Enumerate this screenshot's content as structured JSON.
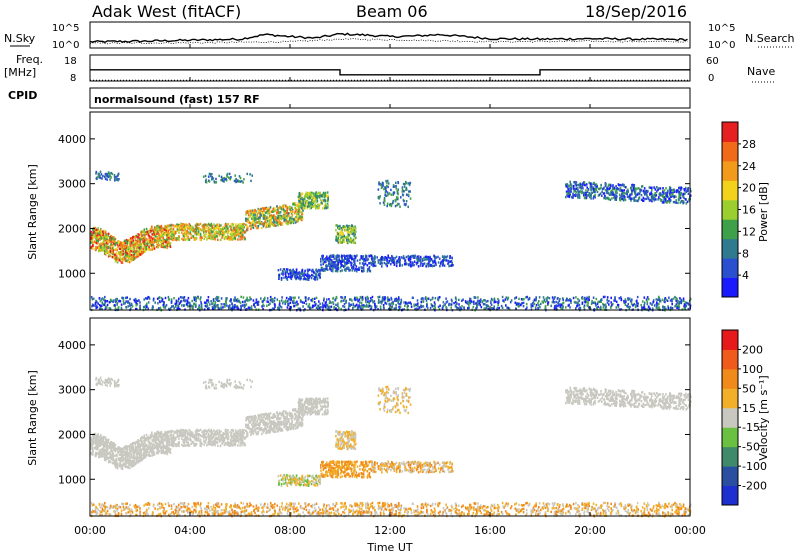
{
  "header": {
    "station": "Adak West (fitACF)",
    "beam": "Beam 06",
    "date": "18/Sep/2016"
  },
  "side_labels": {
    "nsky": "N.Sky",
    "freq": "Freq.",
    "freq_unit": "[MHz]",
    "cpid": "CPID",
    "nsearch": "N.Search",
    "nave": "Nave"
  },
  "cpid_text": "normalsound (fast) 157 RF",
  "x_axis": {
    "label": "Time UT",
    "ticks": [
      "00:00",
      "04:00",
      "08:00",
      "12:00",
      "16:00",
      "20:00",
      "00:00"
    ],
    "range_hours": [
      0,
      24
    ]
  },
  "chart_data": [
    {
      "type": "line",
      "name": "noise",
      "y_left_ticks": [
        "10^5",
        "10^0"
      ],
      "y_right_ticks": [
        "10^5",
        "10^0"
      ],
      "series": [
        {
          "name": "N.Sky",
          "x": [
            0,
            2,
            4,
            6,
            7,
            8,
            9,
            10,
            11,
            12,
            13,
            14,
            16,
            18,
            20,
            22,
            24
          ],
          "y": [
            1.2,
            1.3,
            1.5,
            1.7,
            2.6,
            2.2,
            1.9,
            2.7,
            2.5,
            2.2,
            2.3,
            2.6,
            1.8,
            1.7,
            1.8,
            1.7,
            1.6
          ]
        },
        {
          "name": "N.Search",
          "x": [
            0,
            4,
            8,
            10,
            12,
            14,
            16,
            20,
            24
          ],
          "y": [
            0.9,
            1.0,
            1.2,
            1.7,
            1.6,
            1.4,
            1.2,
            1.3,
            1.2
          ]
        }
      ],
      "ylim": [
        0,
        5
      ]
    },
    {
      "type": "line",
      "name": "frequency",
      "y_left_ticks": [
        "18",
        "8"
      ],
      "y_right_ticks": [
        "60",
        "0"
      ],
      "series": [
        {
          "name": "Freq.",
          "x": [
            0,
            10,
            10,
            18,
            18,
            24
          ],
          "y": [
            12.3,
            12.3,
            10.4,
            10.4,
            12.3,
            12.3
          ]
        },
        {
          "name": "Nave",
          "x": [
            0,
            24
          ],
          "y": [
            8.3,
            8.3
          ]
        }
      ],
      "ylim": [
        8,
        18
      ]
    },
    {
      "type": "heatmap",
      "name": "power",
      "ylabel": "Slant Range [km]",
      "ylim": [
        180,
        4600
      ],
      "y_ticks": [
        1000,
        2000,
        3000,
        4000
      ],
      "colorbar": {
        "label": "Power [dB]",
        "ticks": [
          4,
          8,
          12,
          16,
          20,
          24,
          28
        ],
        "range": [
          0,
          32
        ],
        "colors": [
          "#1a1aff",
          "#2a4fcf",
          "#2f7a8f",
          "#3fa04a",
          "#9bcf30",
          "#f2d21a",
          "#f29a1a",
          "#f06a1a",
          "#e62020"
        ]
      }
    },
    {
      "type": "heatmap",
      "name": "velocity",
      "ylabel": "Slant Range [km]",
      "ylim": [
        180,
        4600
      ],
      "y_ticks": [
        1000,
        2000,
        3000,
        4000
      ],
      "colorbar": {
        "label": "Velocity [m s⁻¹]",
        "ticks": [
          200,
          100,
          50,
          15,
          -15,
          -50,
          -100,
          -200
        ],
        "colors": [
          "#1e2fd0",
          "#2a4fa0",
          "#3f8a6a",
          "#6ac040",
          "#c8c8c0",
          "#f2b02a",
          "#f08a1a",
          "#f05a1a",
          "#e61a1a"
        ]
      }
    }
  ]
}
